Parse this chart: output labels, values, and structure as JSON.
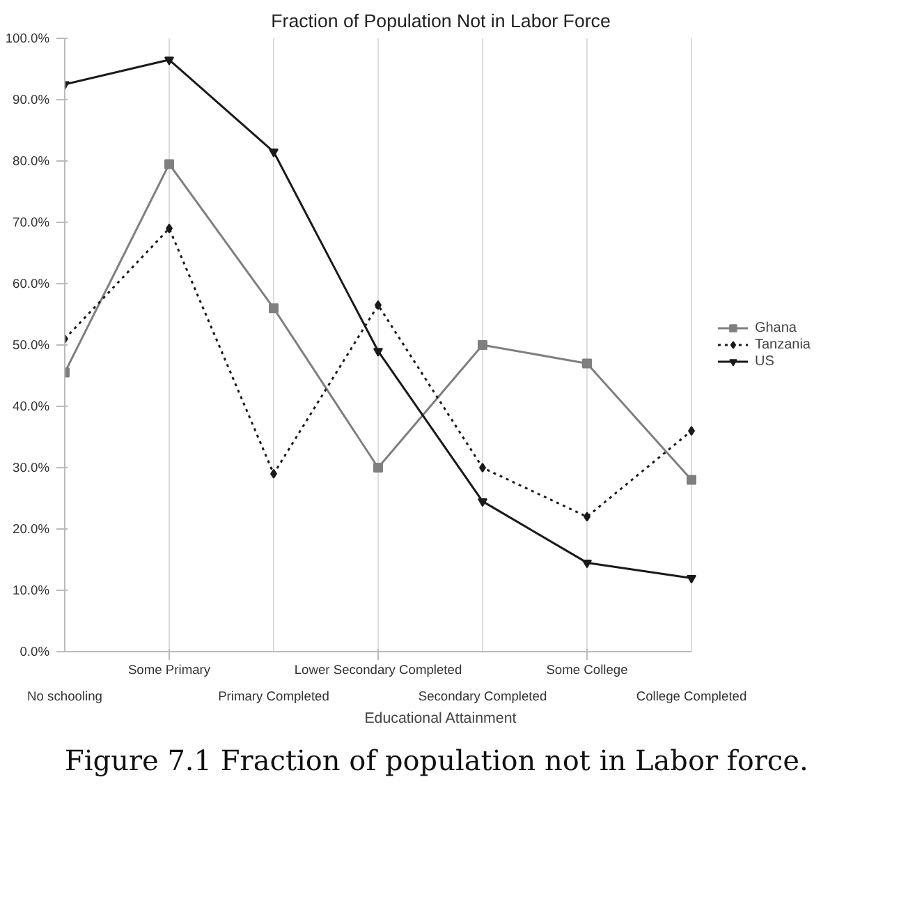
{
  "chart_data": {
    "type": "line",
    "title": "Fraction of Population Not in Labor Force",
    "xlabel": "Educational Attainment",
    "categories": [
      "No schooling",
      "Some Primary",
      "Primary Completed",
      "Lower Secondary Completed",
      "Secondary Completed",
      "Some College",
      "College Completed"
    ],
    "series": [
      {
        "name": "Ghana",
        "color": "#7f7f7f",
        "marker": "square",
        "line_style": "solid",
        "values": [
          45.5,
          79.5,
          56,
          30,
          50,
          47,
          28
        ]
      },
      {
        "name": "Tanzania",
        "color": "#1a1a1a",
        "marker": "diamond",
        "line_style": "dotted",
        "values": [
          51,
          69,
          29,
          56.5,
          30,
          22,
          36
        ]
      },
      {
        "name": "US",
        "color": "#1a1a1a",
        "marker": "triangle",
        "line_style": "solid",
        "values": [
          92.5,
          96.5,
          81.5,
          49,
          24.5,
          14.5,
          12
        ]
      }
    ],
    "ylim": [
      0,
      100
    ],
    "yticks": [
      {
        "value": 0,
        "label": "0.0%"
      },
      {
        "value": 10,
        "label": "10.0%"
      },
      {
        "value": 20,
        "label": "20.0%"
      },
      {
        "value": 30,
        "label": "30.0%"
      },
      {
        "value": 40,
        "label": "40.0%"
      },
      {
        "value": 50,
        "label": "50.0%"
      },
      {
        "value": 60,
        "label": "60.0%"
      },
      {
        "value": 70,
        "label": "70.0%"
      },
      {
        "value": 80,
        "label": "80.0%"
      },
      {
        "value": 90,
        "label": "90.0%"
      },
      {
        "value": 100,
        "label": "100.0%"
      }
    ],
    "grid": "x",
    "legend": "right",
    "annotations": [
      "Figure 7.1  Fraction of population not in Labor force."
    ]
  }
}
